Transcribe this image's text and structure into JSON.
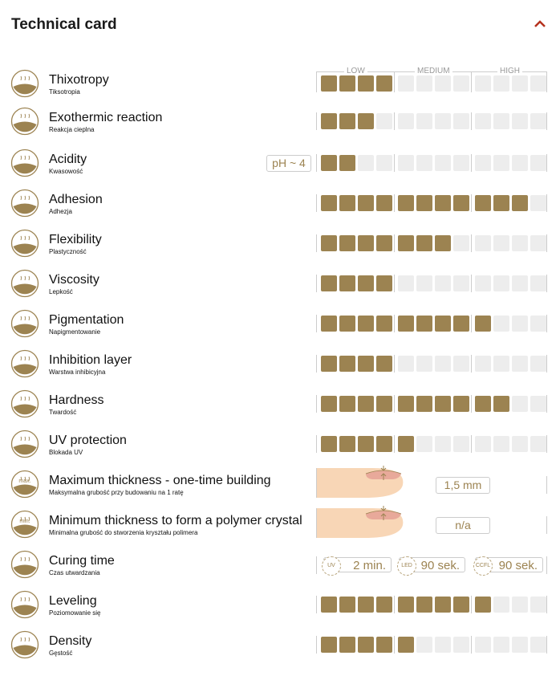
{
  "header": {
    "title": "Technical card",
    "collapse_icon": "chevron-up-icon",
    "collapse_color": "#b5321e"
  },
  "colors": {
    "filled": "#9c8351",
    "empty": "#ededed"
  },
  "scale": {
    "labels": [
      "LOW",
      "MEDIUM",
      "HIGH"
    ],
    "max": 12
  },
  "rows": [
    {
      "name": "Thixotropy",
      "sub": "Tiksotropia",
      "icon": "thixotropy-icon",
      "value": 4
    },
    {
      "name": "Exothermic reaction",
      "sub": "Reakcja cieplna",
      "icon": "heat-icon",
      "value": 3
    },
    {
      "name": "Acidity",
      "sub": "Kwasowość",
      "icon": "ph-drop-icon",
      "value": 2,
      "badge": "pH ~ 4"
    },
    {
      "name": "Adhesion",
      "sub": "Adhezja",
      "icon": "adhesion-icon",
      "value": 11
    },
    {
      "name": "Flexibility",
      "sub": "Plastyczność",
      "icon": "flexibility-icon",
      "value": 7
    },
    {
      "name": "Viscosity",
      "sub": "Lepkość",
      "icon": "viscosity-icon",
      "value": 4
    },
    {
      "name": "Pigmentation",
      "sub": "Napigmentowanie",
      "icon": "pigment-drops-icon",
      "value": 9
    },
    {
      "name": "Inhibition layer",
      "sub": "Warstwa inhibicyjna",
      "icon": "inhibition-layer-icon",
      "value": 4
    },
    {
      "name": "Hardness",
      "sub": "Twardość",
      "icon": "hammer-icon",
      "value": 10
    },
    {
      "name": "UV protection",
      "sub": "Blokada UV",
      "icon": "uv-protection-icon",
      "value": 5
    },
    {
      "name": "Maximum thickness - one-time building",
      "sub": "Maksymalna grubość przy budowaniu na 1 ratę",
      "icon": "max-thickness-icon",
      "icon_text": "max.",
      "thickness": "1,5 mm"
    },
    {
      "name": "Minimum thickness to form a polymer crystal",
      "sub": "Minimalna grubość do stworzenia kryształu polimera",
      "icon": "min-thickness-icon",
      "icon_text": "min.",
      "thickness": "n/a"
    },
    {
      "name": "Curing time",
      "sub": "Czas utwardzania",
      "icon": "lamp-icon",
      "curing": [
        {
          "lamp": "UV",
          "time": "2 min."
        },
        {
          "lamp": "LED",
          "time": "90 sek."
        },
        {
          "lamp": "CCFL",
          "time": "90 sek."
        }
      ]
    },
    {
      "name": "Leveling",
      "sub": "Poziomowanie się",
      "icon": "leveling-icon",
      "value": 9
    },
    {
      "name": "Density",
      "sub": "Gęstość",
      "icon": "density-icon",
      "value": 5
    }
  ]
}
